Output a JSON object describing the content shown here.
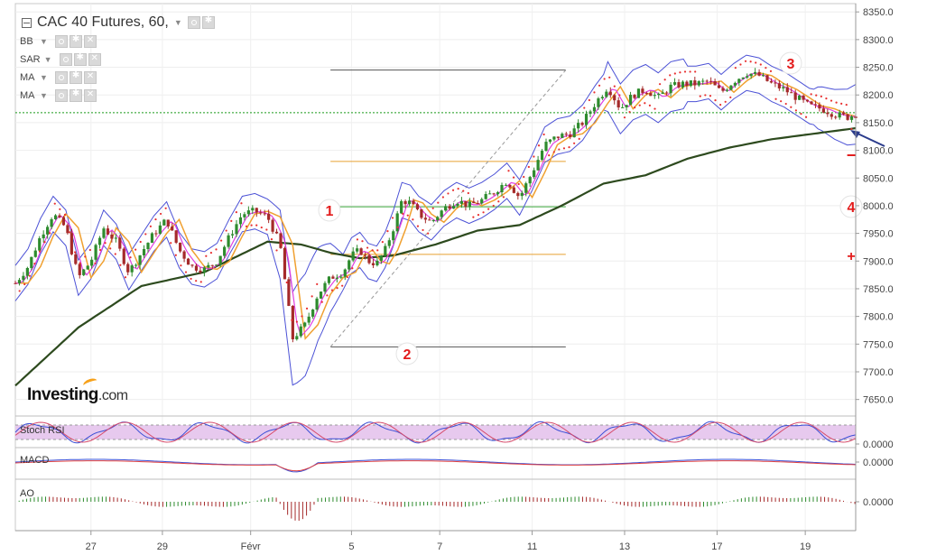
{
  "header": {
    "title": "CAC 40 Futures, 60,",
    "indicators": [
      "BB",
      "SAR",
      "MA",
      "MA"
    ]
  },
  "brand": {
    "name": "Investing",
    "suffix": ".com"
  },
  "panels": {
    "stoch_label": "Stoch RSI",
    "stoch_value": "0.0000",
    "macd_label": "MACD",
    "macd_value": "0.0000",
    "ao_label": "AO",
    "ao_value": "0.0000"
  },
  "annotations": [
    "1",
    "2",
    "3",
    "4"
  ],
  "marks": {
    "minus": "−",
    "plus": "+"
  },
  "colors": {
    "up": "#2e8b2e",
    "down": "#a52a2a",
    "bollinger": "#4c52d6",
    "ma_long": "#2d4a1e",
    "ma_short": "#f0a030",
    "ma_fast": "#e040e0",
    "sar": "#e83030",
    "annotation": "#e31b1b",
    "arrow": "#2b3c8c"
  },
  "chart_data": {
    "type": "line",
    "title": "CAC 40 Futures, 60,",
    "y_ticks": [
      "8350.0",
      "8300.0",
      "8250.0",
      "8200.0",
      "8150.0",
      "8100.0",
      "8050.0",
      "8000.0",
      "7950.0",
      "7900.0",
      "7850.0",
      "7800.0",
      "7750.0",
      "7700.0",
      "7650.0"
    ],
    "ylim": [
      7625,
      8365
    ],
    "x_ticks": [
      "27",
      "29",
      "Févr",
      "5",
      "7",
      "11",
      "13",
      "17",
      "19"
    ],
    "series": [
      {
        "kind": "price",
        "x": [
          0,
          3,
          6,
          9,
          12,
          15,
          18,
          21,
          24,
          27,
          30,
          33,
          36,
          39,
          42,
          45,
          48,
          51,
          54,
          57,
          60,
          63,
          66,
          69,
          72,
          75,
          78,
          80,
          82,
          84,
          86,
          88,
          90,
          92,
          94,
          96,
          99,
          102,
          105,
          108,
          111,
          114,
          117,
          120,
          123,
          126,
          129,
          132,
          135,
          138,
          141,
          144,
          147,
          150,
          153,
          156,
          159,
          162,
          165,
          168,
          171,
          174,
          177,
          180,
          183,
          186,
          189,
          192,
          195,
          198,
          200
        ],
        "values": [
          7860,
          7890,
          7945,
          7985,
          7960,
          7870,
          7900,
          7960,
          7935,
          7880,
          7915,
          7950,
          7975,
          7920,
          7890,
          7885,
          7900,
          7945,
          7985,
          7990,
          7980,
          7930,
          7760,
          7785,
          7840,
          7870,
          7880,
          7910,
          7920,
          7900,
          7895,
          7920,
          7960,
          8010,
          8005,
          7985,
          7970,
          7995,
          8010,
          8000,
          8010,
          8025,
          8045,
          8015,
          8060,
          8110,
          8125,
          8130,
          8150,
          8185,
          8215,
          8175,
          8200,
          8210,
          8195,
          8215,
          8220,
          8220,
          8225,
          8205,
          8225,
          8240,
          8235,
          8220,
          8210,
          8195,
          8180,
          8175,
          8165,
          8160,
          8165
        ]
      },
      {
        "kind": "ma_long",
        "x": [
          0,
          15,
          30,
          45,
          60,
          68,
          75,
          82,
          90,
          100,
          110,
          120,
          130,
          140,
          150,
          160,
          170,
          180,
          190,
          200
        ],
        "values": [
          7675,
          7780,
          7855,
          7880,
          7935,
          7930,
          7915,
          7905,
          7910,
          7930,
          7955,
          7965,
          8000,
          8040,
          8055,
          8085,
          8105,
          8120,
          8130,
          8140
        ]
      }
    ],
    "levels": [
      {
        "name": "line-top",
        "value": 8245
      },
      {
        "name": "green-dotted",
        "value": 8168
      },
      {
        "name": "orange-upper",
        "value": 8080
      },
      {
        "name": "green-mid",
        "value": 7998
      },
      {
        "name": "orange-lower",
        "value": 7912
      },
      {
        "name": "line-bottom",
        "value": 7745
      }
    ],
    "grid": true
  }
}
